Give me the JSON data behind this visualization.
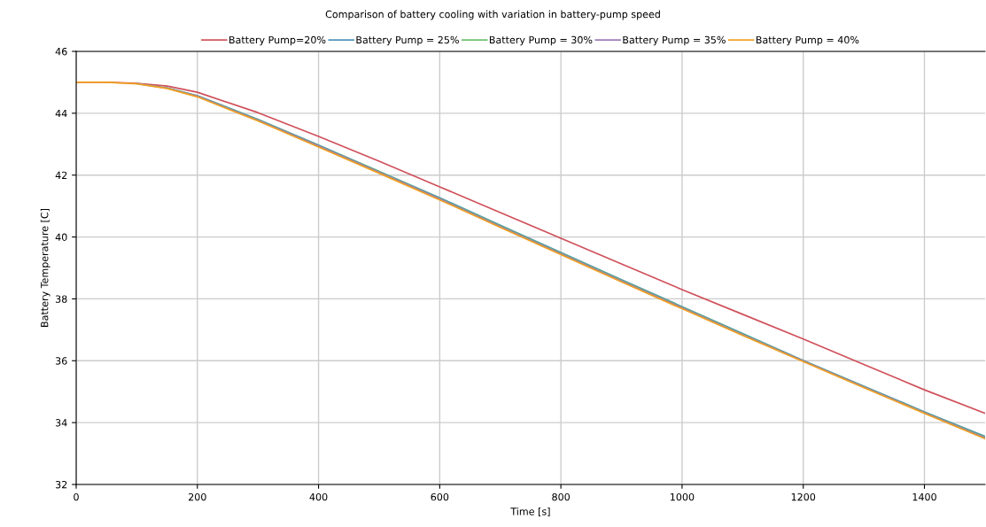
{
  "chart_data": {
    "type": "line",
    "title": "Comparison of battery cooling with variation in battery-pump speed",
    "xlabel": "Time [s]",
    "ylabel": "Battery Temperature [C]",
    "xlim": [
      0,
      1500
    ],
    "xticks": [
      0,
      200,
      400,
      600,
      800,
      1000,
      1200,
      1400
    ],
    "ylim": [
      32,
      46
    ],
    "yticks": [
      32,
      34,
      36,
      38,
      40,
      42,
      44,
      46
    ],
    "grid": true,
    "legend": "top",
    "line_style": "solid",
    "x": [
      0,
      50,
      100,
      150,
      200,
      300,
      400,
      500,
      600,
      700,
      800,
      900,
      1000,
      1100,
      1200,
      1300,
      1400,
      1500
    ],
    "series": [
      {
        "name": "Battery Pump=20%",
        "color": "#d0505a",
        "values": [
          45.0,
          45.0,
          44.97,
          44.88,
          44.68,
          44.02,
          43.25,
          42.45,
          41.62,
          40.79,
          39.96,
          39.13,
          38.3,
          37.5,
          36.7,
          35.88,
          35.06,
          34.3
        ]
      },
      {
        "name": "Battery Pump = 25%",
        "color": "#4a90b8",
        "values": [
          null,
          null,
          null,
          44.82,
          44.57,
          43.8,
          42.97,
          42.12,
          41.27,
          40.38,
          39.5,
          38.62,
          37.75,
          36.88,
          36.01,
          35.18,
          34.35,
          33.56
        ]
      },
      {
        "name": "Battery Pump = 30%",
        "color": "#6abf69",
        "values": [
          null,
          null,
          44.96,
          44.82,
          44.56,
          43.79,
          42.96,
          42.11,
          41.25,
          40.36,
          39.48,
          38.6,
          37.73,
          36.86,
          36.0,
          35.16,
          34.33,
          33.53
        ]
      },
      {
        "name": "Battery Pump = 35%",
        "color": "#9a78b8",
        "values": [
          null,
          null,
          44.96,
          44.81,
          44.55,
          43.77,
          42.94,
          42.09,
          41.23,
          40.34,
          39.46,
          38.58,
          37.71,
          36.84,
          35.99,
          35.15,
          34.32,
          33.51
        ]
      },
      {
        "name": "Battery Pump = 40%",
        "color": "#f0a020",
        "values": [
          45.0,
          45.0,
          44.95,
          44.8,
          44.53,
          43.75,
          42.91,
          42.06,
          41.2,
          40.31,
          39.43,
          38.55,
          37.68,
          36.82,
          35.97,
          35.13,
          34.3,
          33.48
        ]
      }
    ]
  }
}
